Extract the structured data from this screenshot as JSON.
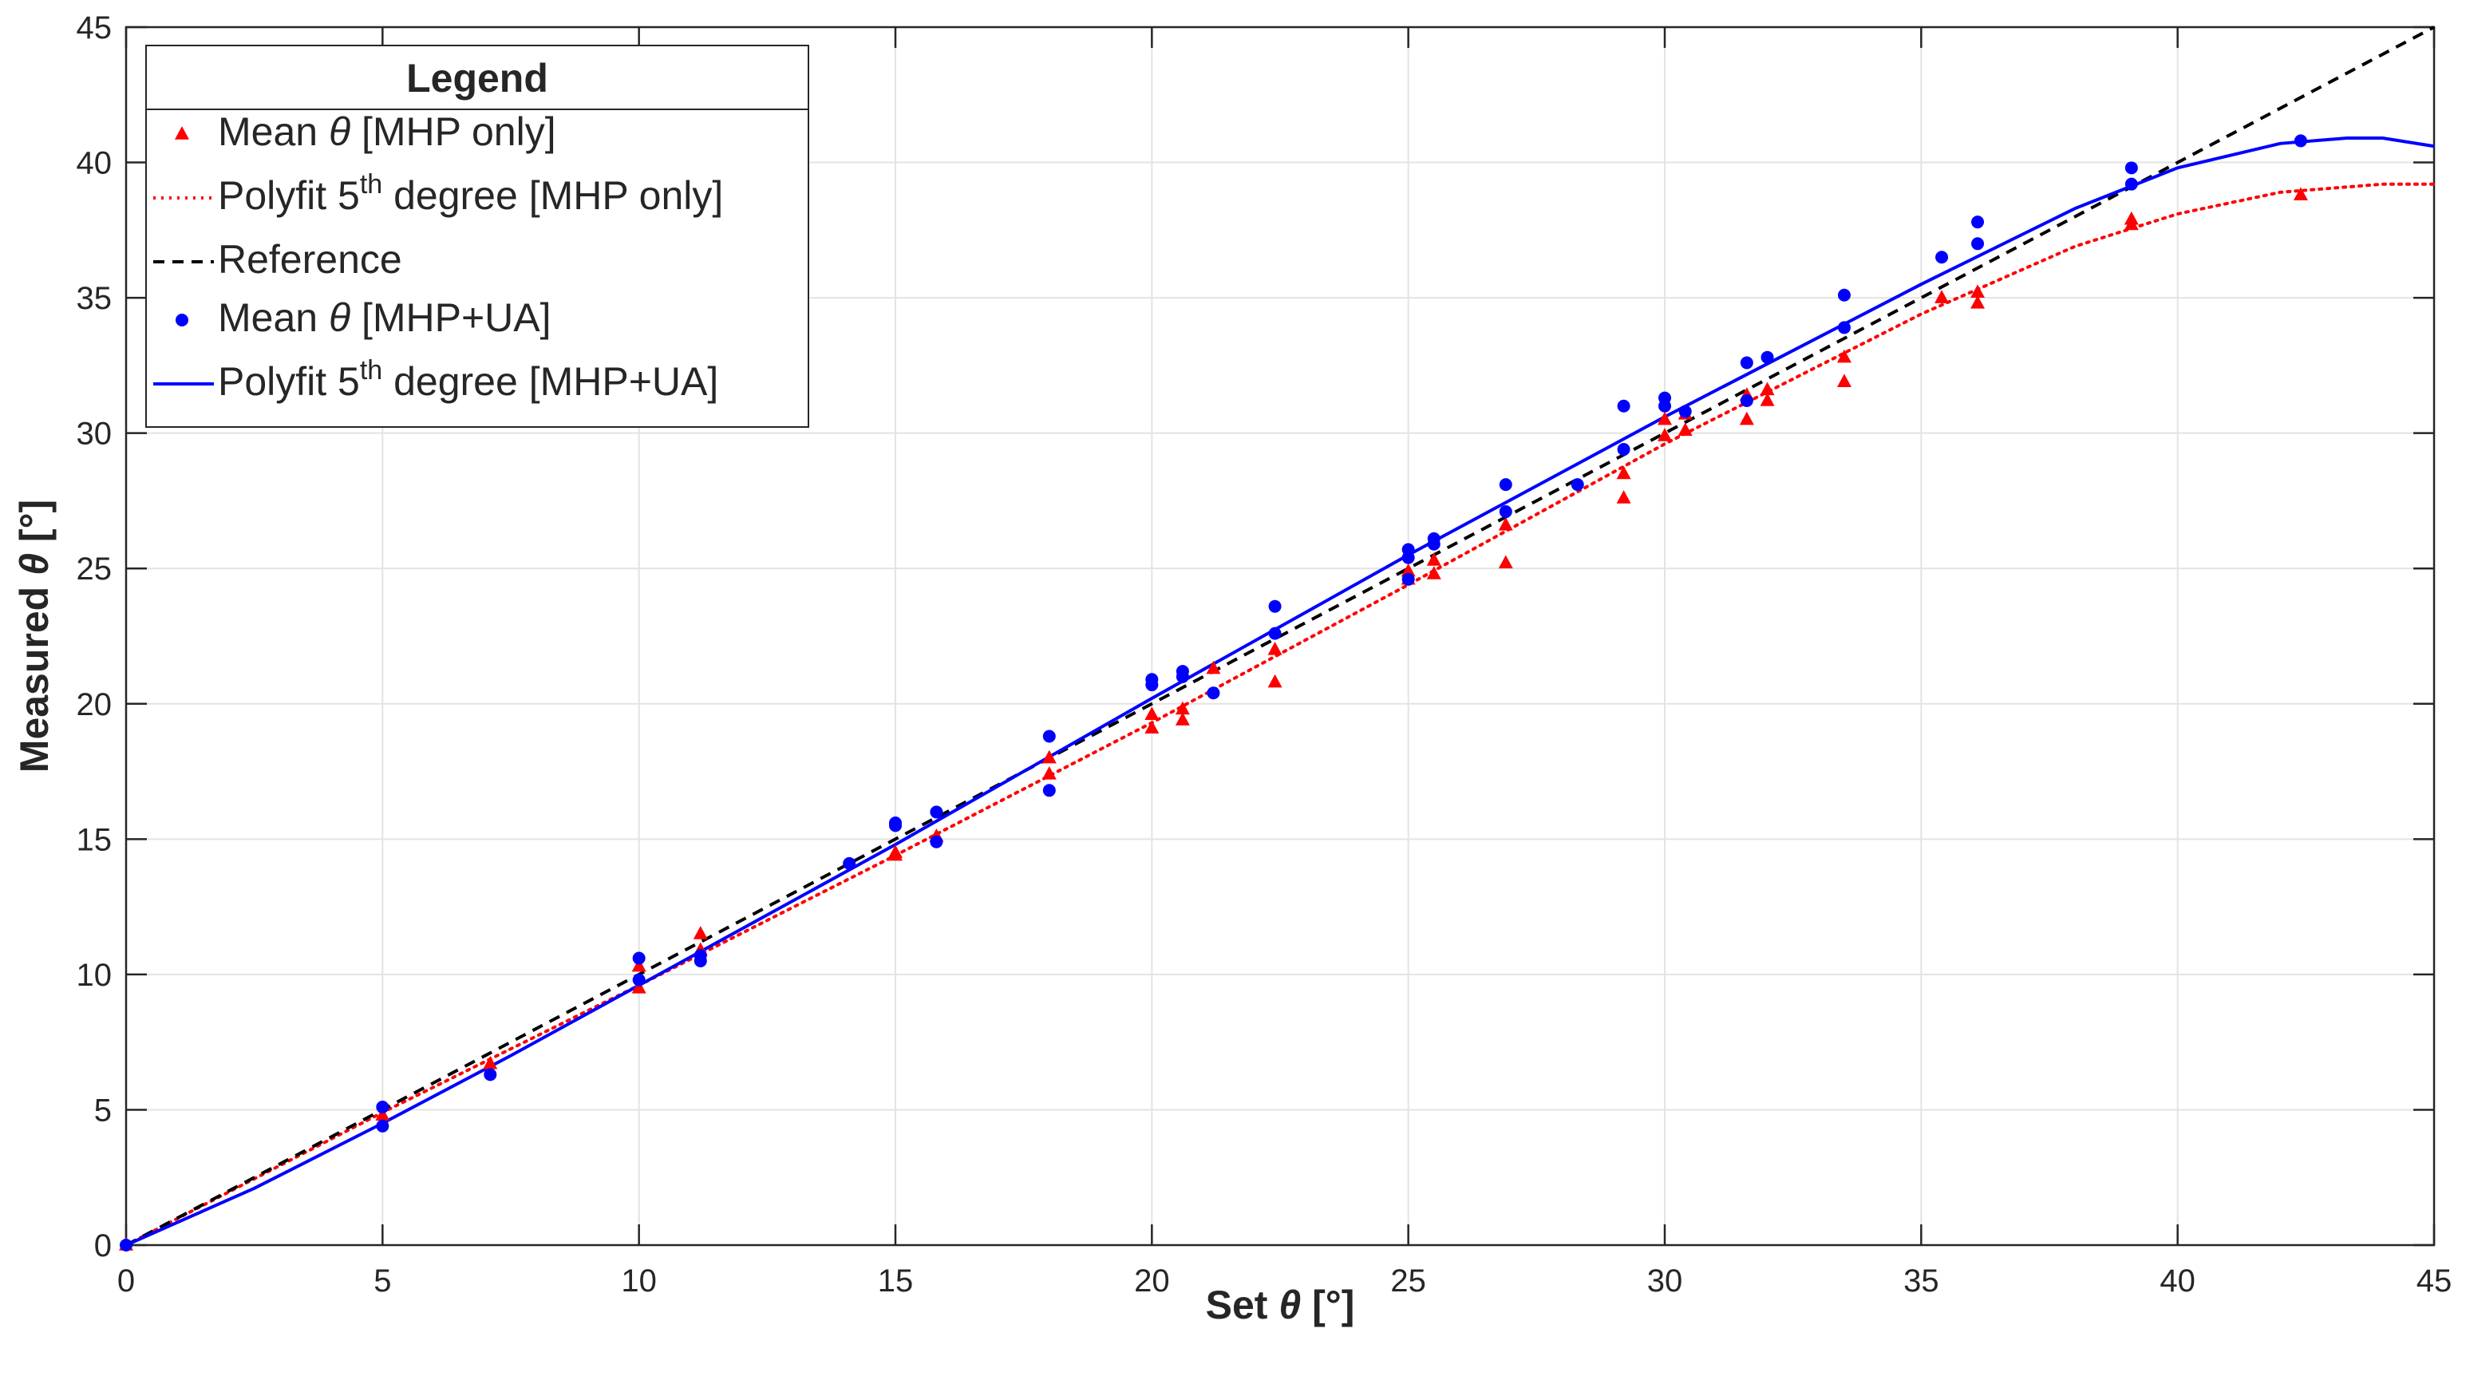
{
  "chart_data": {
    "type": "scatter",
    "xlabel": "Set θ [°]",
    "ylabel": "Measured θ [°]",
    "xlim": [
      0,
      45
    ],
    "ylim": [
      0,
      45
    ],
    "xticks": [
      0,
      5,
      10,
      15,
      20,
      25,
      30,
      35,
      40,
      45
    ],
    "yticks": [
      0,
      5,
      10,
      15,
      20,
      25,
      30,
      35,
      40,
      45
    ],
    "grid": true,
    "legend": {
      "title": "Legend",
      "placement": "top-left",
      "entries": [
        {
          "pre": "Mean ",
          "sym": "θ",
          "post": " [MHP only]"
        },
        {
          "pre": "Polyfit 5",
          "sup": "th",
          "post": " degree [MHP only]"
        },
        {
          "pre": "Reference"
        },
        {
          "pre": "Mean ",
          "sym": "θ",
          "post": " [MHP+UA]"
        },
        {
          "pre": "Polyfit 5",
          "sup": "th",
          "post": " degree [MHP+UA]"
        }
      ]
    },
    "colors": {
      "mhp_only": "#ff0000",
      "mhp_ua": "#0000ff",
      "reference": "#000000"
    },
    "series": [
      {
        "key": "mean_mhp_only",
        "kind": "scatter",
        "marker": "triangle",
        "color": "#ff0000",
        "points": [
          [
            0,
            0
          ],
          [
            5,
            4.8
          ],
          [
            7.1,
            6.7
          ],
          [
            10,
            9.5
          ],
          [
            10,
            10.3
          ],
          [
            11.2,
            11.5
          ],
          [
            11.2,
            10.9
          ],
          [
            15,
            14.4
          ],
          [
            15,
            14.5
          ],
          [
            15.8,
            15.1
          ],
          [
            18,
            17.4
          ],
          [
            18,
            18.0
          ],
          [
            20,
            19.1
          ],
          [
            20,
            19.6
          ],
          [
            20.6,
            19.4
          ],
          [
            20.6,
            19.8
          ],
          [
            21.2,
            21.3
          ],
          [
            22.4,
            20.8
          ],
          [
            22.4,
            22.0
          ],
          [
            25,
            24.9
          ],
          [
            25,
            24.6
          ],
          [
            25.5,
            24.8
          ],
          [
            25.5,
            25.3
          ],
          [
            26.9,
            25.2
          ],
          [
            26.9,
            26.6
          ],
          [
            29.2,
            27.6
          ],
          [
            29.2,
            28.5
          ],
          [
            30,
            29.9
          ],
          [
            30,
            30.5
          ],
          [
            30.4,
            30.1
          ],
          [
            30.4,
            30.7
          ],
          [
            31.6,
            30.5
          ],
          [
            31.6,
            31.4
          ],
          [
            32,
            31.2
          ],
          [
            32,
            31.6
          ],
          [
            33.5,
            31.9
          ],
          [
            33.5,
            32.8
          ],
          [
            35.4,
            35.0
          ],
          [
            36.1,
            34.8
          ],
          [
            36.1,
            35.2
          ],
          [
            39.1,
            37.7
          ],
          [
            39.1,
            37.9
          ],
          [
            42.4,
            38.8
          ]
        ]
      },
      {
        "key": "mean_mhp_ua",
        "kind": "scatter",
        "marker": "circle",
        "color": "#0000ff",
        "points": [
          [
            0,
            0
          ],
          [
            5,
            5.1
          ],
          [
            5,
            4.4
          ],
          [
            7.1,
            6.3
          ],
          [
            10,
            10.6
          ],
          [
            10,
            9.8
          ],
          [
            11.2,
            10.5
          ],
          [
            11.2,
            10.7
          ],
          [
            14.1,
            14.1
          ],
          [
            15,
            15.5
          ],
          [
            15,
            15.6
          ],
          [
            15.8,
            14.9
          ],
          [
            15.8,
            16.0
          ],
          [
            18,
            18.8
          ],
          [
            18,
            16.8
          ],
          [
            20,
            20.7
          ],
          [
            20,
            20.9
          ],
          [
            20.6,
            21.0
          ],
          [
            20.6,
            21.2
          ],
          [
            21.2,
            20.4
          ],
          [
            22.4,
            22.6
          ],
          [
            22.4,
            23.6
          ],
          [
            25,
            25.7
          ],
          [
            25,
            25.4
          ],
          [
            25,
            24.6
          ],
          [
            25.5,
            25.9
          ],
          [
            25.5,
            26.1
          ],
          [
            26.9,
            28.1
          ],
          [
            26.9,
            27.1
          ],
          [
            28.3,
            28.1
          ],
          [
            29.2,
            31.0
          ],
          [
            29.2,
            29.4
          ],
          [
            30,
            31.0
          ],
          [
            30,
            31.3
          ],
          [
            30.4,
            30.8
          ],
          [
            31.6,
            31.2
          ],
          [
            31.6,
            32.6
          ],
          [
            32,
            32.8
          ],
          [
            33.5,
            35.1
          ],
          [
            33.5,
            33.9
          ],
          [
            35.4,
            36.5
          ],
          [
            36.1,
            37.0
          ],
          [
            36.1,
            37.8
          ],
          [
            39.1,
            39.8
          ],
          [
            39.1,
            39.2
          ],
          [
            42.4,
            40.8
          ]
        ]
      },
      {
        "key": "polyfit_mhp_only",
        "kind": "line",
        "style": "dotted",
        "color": "#ff0000",
        "points": [
          [
            0,
            0
          ],
          [
            5,
            4.9
          ],
          [
            10,
            9.6
          ],
          [
            15,
            14.4
          ],
          [
            20,
            19.3
          ],
          [
            25,
            24.4
          ],
          [
            30,
            29.6
          ],
          [
            35,
            34.4
          ],
          [
            38,
            36.9
          ],
          [
            40,
            38.1
          ],
          [
            42,
            38.9
          ],
          [
            44,
            39.2
          ],
          [
            45,
            39.2
          ]
        ]
      },
      {
        "key": "reference",
        "kind": "line",
        "style": "dashed",
        "color": "#000000",
        "points": [
          [
            0,
            0
          ],
          [
            45,
            45
          ]
        ]
      },
      {
        "key": "polyfit_mhp_ua",
        "kind": "line",
        "style": "solid",
        "color": "#0000ff",
        "points": [
          [
            0,
            0
          ],
          [
            2.5,
            2.1
          ],
          [
            5,
            4.5
          ],
          [
            7.5,
            7.0
          ],
          [
            10,
            9.6
          ],
          [
            15,
            14.8
          ],
          [
            20,
            20.2
          ],
          [
            25,
            25.5
          ],
          [
            30,
            30.6
          ],
          [
            35,
            35.5
          ],
          [
            38,
            38.3
          ],
          [
            40,
            39.8
          ],
          [
            42,
            40.7
          ],
          [
            43.3,
            40.9
          ],
          [
            44,
            40.9
          ],
          [
            45,
            40.6
          ]
        ]
      }
    ]
  }
}
